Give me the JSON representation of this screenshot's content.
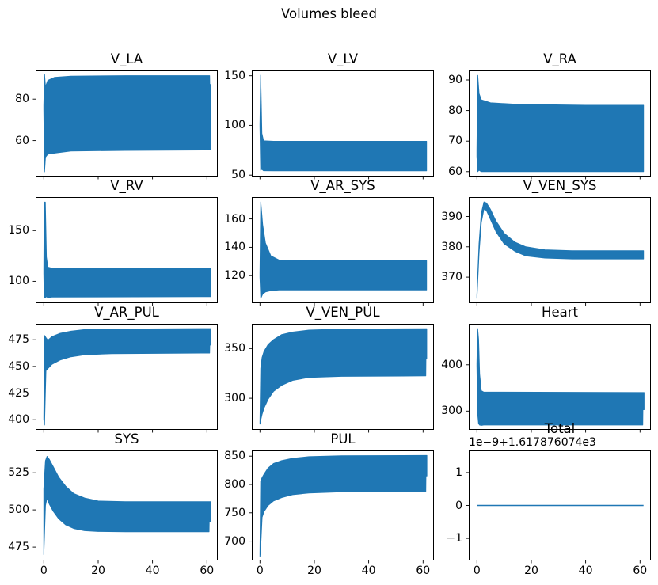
{
  "figure": {
    "title": "Volumes bleed",
    "background": "#ffffff",
    "accent_color": "#1f77b4",
    "axis_color": "#000000"
  },
  "chart_data": {
    "type": "area",
    "title": "Volumes bleed",
    "grid": "off",
    "legend": "none",
    "xlim": [
      -3,
      64
    ],
    "xticks": [
      0,
      20,
      40,
      60
    ],
    "xticklabels": [
      "0",
      "20",
      "40",
      "60"
    ],
    "note": "Each subplot shows a fast-oscillating volume signal rendered as a filled min/max envelope band; envelope points are [x, min, max].",
    "subplots": [
      {
        "title": "V_LA",
        "type": "area",
        "ylim": [
          42.7,
          93.8
        ],
        "yticks": [
          60,
          80
        ],
        "xticklabels": false,
        "envelope": [
          [
            0,
            75,
            77
          ],
          [
            0.25,
            45,
            92
          ],
          [
            0.6,
            52,
            86
          ],
          [
            1.5,
            53.5,
            89
          ],
          [
            4,
            54,
            90.5
          ],
          [
            10,
            55,
            91
          ],
          [
            30,
            55.3,
            91.3
          ],
          [
            61,
            55.5,
            91.3
          ],
          [
            61.05,
            55.5,
            87
          ],
          [
            61.4,
            55.5,
            87
          ]
        ]
      },
      {
        "title": "V_LV",
        "type": "area",
        "ylim": [
          48.6,
          155.3
        ],
        "yticks": [
          50,
          100,
          150
        ],
        "xticklabels": false,
        "envelope": [
          [
            0,
            99,
            101
          ],
          [
            0.25,
            55,
            150.5
          ],
          [
            0.7,
            56,
            92
          ],
          [
            1.3,
            54.5,
            84.5
          ],
          [
            5,
            54.3,
            84
          ],
          [
            61.3,
            54.3,
            84
          ]
        ]
      },
      {
        "title": "V_RA",
        "type": "area",
        "ylim": [
          58.4,
          93.1
        ],
        "yticks": [
          60,
          70,
          80,
          90
        ],
        "xticklabels": false,
        "envelope": [
          [
            0,
            65,
            67
          ],
          [
            0.3,
            60,
            91.5
          ],
          [
            0.8,
            60.5,
            85.5
          ],
          [
            1.6,
            60,
            83.5
          ],
          [
            5,
            60,
            82.5
          ],
          [
            15,
            60,
            82
          ],
          [
            40,
            60,
            81.7
          ],
          [
            61.3,
            60,
            81.7
          ]
        ]
      },
      {
        "title": "V_RV",
        "type": "area",
        "ylim": [
          78.5,
          183
        ],
        "yticks": [
          100,
          150
        ],
        "xticklabels": false,
        "envelope": [
          [
            0,
            108,
            112
          ],
          [
            0.15,
            84,
            178
          ],
          [
            0.55,
            84,
            178
          ],
          [
            0.95,
            85,
            124
          ],
          [
            1.5,
            84,
            114
          ],
          [
            3,
            84.5,
            113
          ],
          [
            61.3,
            85,
            112.5
          ]
        ]
      },
      {
        "title": "V_AR_SYS",
        "type": "area",
        "ylim": [
          100.6,
          175.4
        ],
        "yticks": [
          120,
          140,
          160
        ],
        "xticklabels": false,
        "envelope": [
          [
            0,
            119,
            122
          ],
          [
            0.3,
            104,
            172
          ],
          [
            1,
            107,
            156
          ],
          [
            2,
            108.5,
            143
          ],
          [
            4,
            109.5,
            134
          ],
          [
            7,
            110,
            131
          ],
          [
            12,
            110,
            130.5
          ],
          [
            61.3,
            110,
            130.5
          ]
        ]
      },
      {
        "title": "V_VEN_SYS",
        "type": "area",
        "ylim": [
          361.4,
          396.4
        ],
        "yticks": [
          370,
          380,
          390
        ],
        "xticklabels": false,
        "envelope": [
          [
            0,
            363,
            364
          ],
          [
            0.8,
            378,
            381
          ],
          [
            1.6,
            388,
            391
          ],
          [
            2.6,
            392.5,
            394.8
          ],
          [
            3.5,
            392,
            394.5
          ],
          [
            5,
            389,
            392.3
          ],
          [
            7,
            385,
            388.5
          ],
          [
            10,
            381,
            384.5
          ],
          [
            14,
            378.5,
            381.5
          ],
          [
            18,
            377,
            380
          ],
          [
            25,
            376.3,
            379
          ],
          [
            35,
            376,
            378.7
          ],
          [
            61.3,
            376,
            378.7
          ]
        ]
      },
      {
        "title": "V_AR_PUL",
        "type": "area",
        "ylim": [
          390.5,
          490
        ],
        "yticks": [
          400,
          425,
          450,
          475
        ],
        "xticklabels": false,
        "envelope": [
          [
            0,
            400,
            402
          ],
          [
            0.25,
            395,
            479
          ],
          [
            0.8,
            446,
            477
          ],
          [
            1.5,
            448,
            474.5
          ],
          [
            3,
            452,
            478
          ],
          [
            6,
            456,
            481
          ],
          [
            10,
            459,
            483
          ],
          [
            15,
            461,
            484.5
          ],
          [
            25,
            462,
            485
          ],
          [
            61,
            462.5,
            485.5
          ],
          [
            61.05,
            470,
            485.5
          ],
          [
            61.35,
            470,
            485.5
          ]
        ]
      },
      {
        "title": "V_VEN_PUL",
        "type": "area",
        "ylim": [
          268.2,
          374.9
        ],
        "yticks": [
          300,
          350
        ],
        "xticklabels": false,
        "envelope": [
          [
            0,
            274,
            276
          ],
          [
            0.3,
            278,
            330
          ],
          [
            0.8,
            284,
            341
          ],
          [
            1.5,
            290,
            347
          ],
          [
            3,
            299,
            354
          ],
          [
            5,
            307,
            359
          ],
          [
            8,
            313,
            364
          ],
          [
            12,
            318,
            366.5
          ],
          [
            18,
            321,
            368.5
          ],
          [
            30,
            322,
            369.5
          ],
          [
            61,
            322.5,
            370
          ],
          [
            61.05,
            340,
            370
          ],
          [
            61.35,
            340,
            370
          ]
        ]
      },
      {
        "title": "Heart",
        "type": "area",
        "ylim": [
          259.5,
          488.5
        ],
        "yticks": [
          300,
          400
        ],
        "xticklabels": false,
        "envelope": [
          [
            0,
            398,
            402
          ],
          [
            0.25,
            295,
            478
          ],
          [
            0.6,
            273,
            455
          ],
          [
            1,
            270,
            380
          ],
          [
            1.6,
            269,
            344
          ],
          [
            2.5,
            270,
            341
          ],
          [
            61,
            270,
            340
          ],
          [
            61.05,
            303,
            340
          ],
          [
            61.5,
            303,
            340
          ]
        ]
      },
      {
        "title": "SYS",
        "type": "area",
        "ylim": [
          466,
          540
        ],
        "yticks": [
          475,
          500,
          525
        ],
        "xticklabels": true,
        "envelope": [
          [
            0,
            470,
            514
          ],
          [
            0.6,
            503,
            533
          ],
          [
            1.2,
            508,
            536
          ],
          [
            2,
            504,
            534
          ],
          [
            3.5,
            499,
            529
          ],
          [
            5.5,
            494,
            522
          ],
          [
            8,
            490,
            516
          ],
          [
            11,
            487.5,
            511
          ],
          [
            15,
            486,
            508
          ],
          [
            20,
            485.5,
            506
          ],
          [
            30,
            485.3,
            505.5
          ],
          [
            60.8,
            485.3,
            505.5
          ],
          [
            60.85,
            492,
            505.5
          ],
          [
            61.5,
            492,
            505.5
          ]
        ]
      },
      {
        "title": "PUL",
        "type": "area",
        "ylim": [
          666,
          860
        ],
        "yticks": [
          700,
          750,
          800,
          850
        ],
        "xticklabels": true,
        "envelope": [
          [
            0,
            673,
            677
          ],
          [
            0.25,
            690,
            806
          ],
          [
            0.8,
            742,
            812
          ],
          [
            1.5,
            752,
            818
          ],
          [
            3,
            763,
            829
          ],
          [
            5,
            771,
            837
          ],
          [
            8,
            777,
            842
          ],
          [
            12,
            782,
            846
          ],
          [
            18,
            785,
            849
          ],
          [
            30,
            787,
            850.5
          ],
          [
            61,
            787.5,
            851
          ],
          [
            61.05,
            815,
            851
          ],
          [
            61.4,
            815,
            851
          ]
        ]
      },
      {
        "title": "Total",
        "type": "line",
        "ylim": [
          -1.67,
          1.67
        ],
        "yticks": [
          -1,
          0,
          1
        ],
        "xticklabels": true,
        "offset_text": "1e−9+1.617876074e3",
        "line": [
          [
            0,
            0
          ],
          [
            61.3,
            0
          ]
        ]
      }
    ]
  }
}
